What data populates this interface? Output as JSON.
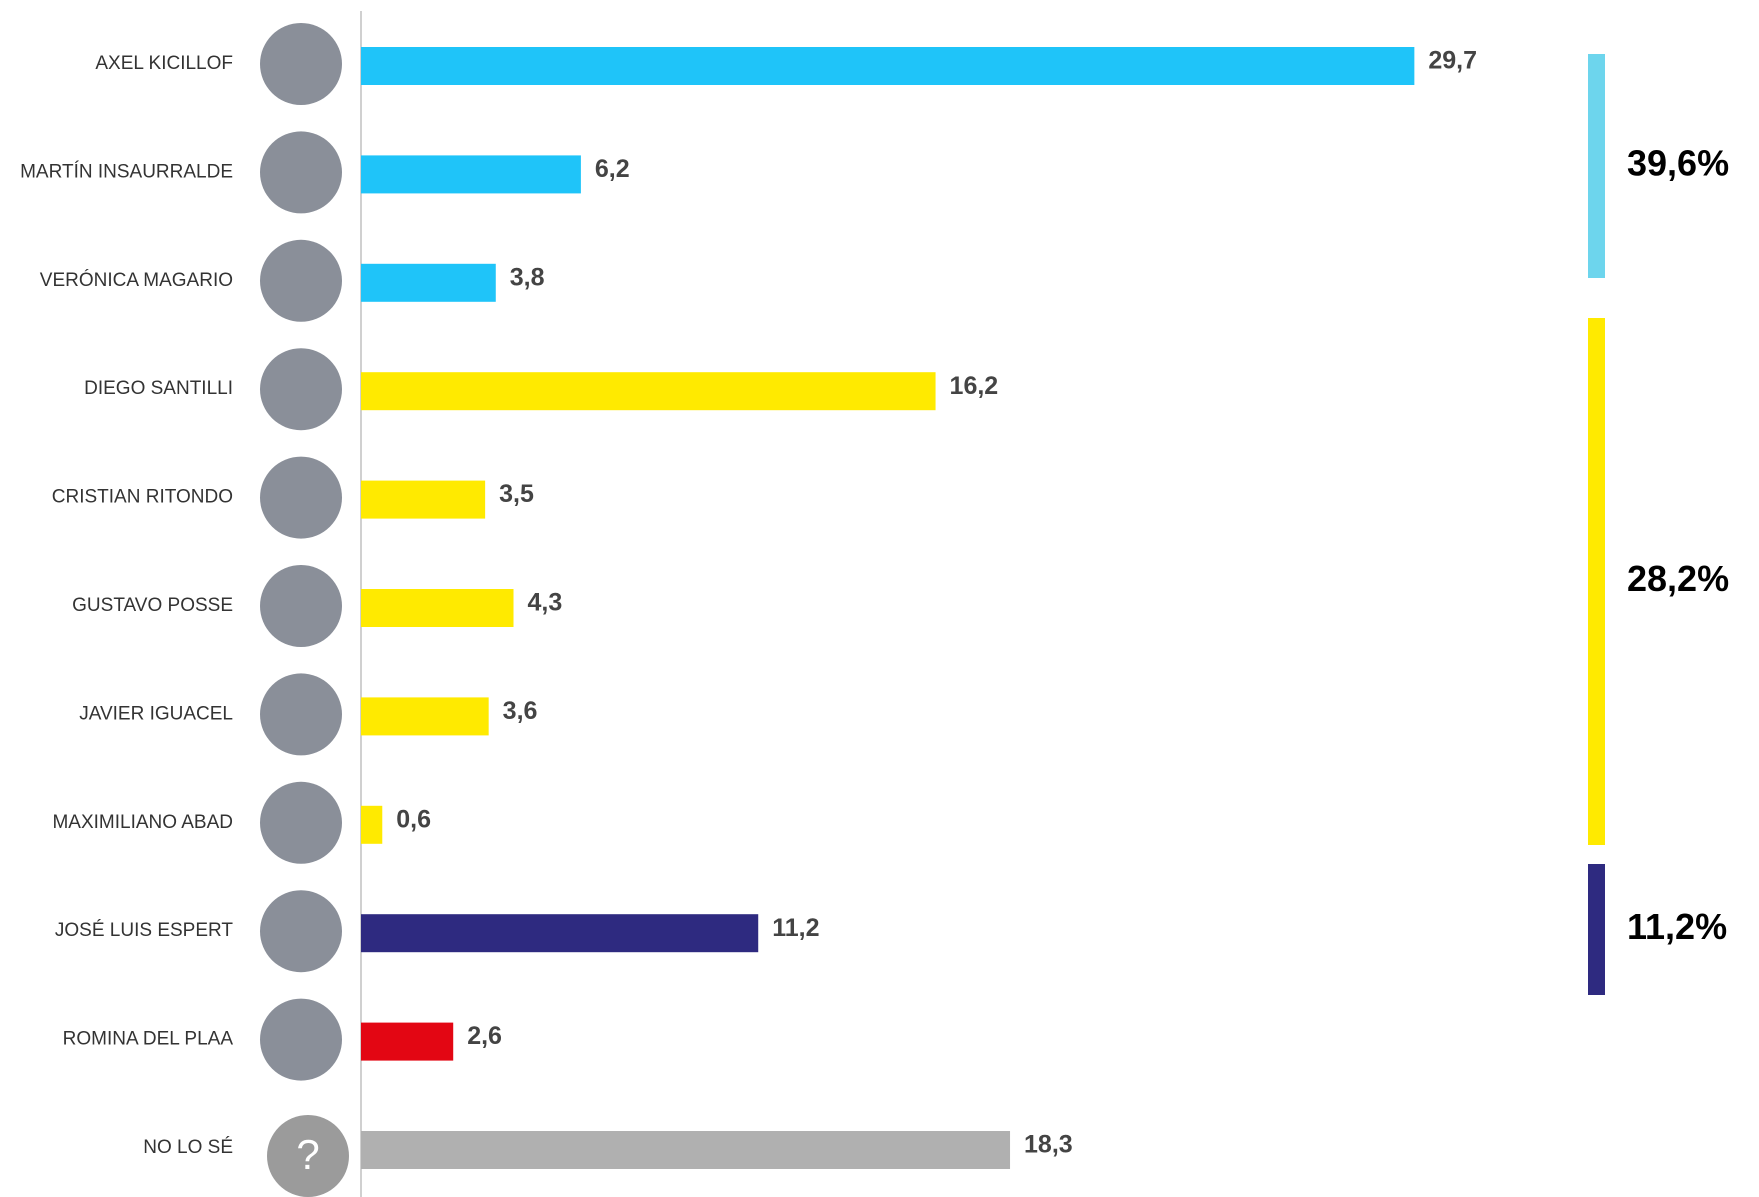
{
  "chart_data": {
    "type": "hbar",
    "categories": [
      "AXEL KICILLOF",
      "MARTÍN INSAURRALDE",
      "VERÓNICA MAGARIO",
      "DIEGO SANTILLI",
      "CRISTIAN RITONDO",
      "GUSTAVO POSSE",
      "JAVIER IGUACEL",
      "MAXIMILIANO ABAD",
      "JOSÉ LUIS ESPERT",
      "ROMINA DEL PLAA",
      "NO LO SÉ"
    ],
    "values": [
      29.7,
      6.2,
      3.8,
      16.2,
      3.5,
      4.3,
      3.6,
      0.6,
      11.2,
      2.6,
      18.3
    ],
    "value_labels": [
      "29,7",
      "6,2",
      "3,8",
      "16,2",
      "3,5",
      "4,3",
      "3,6",
      "0,6",
      "11,2",
      "2,6",
      "18,3"
    ],
    "colors": [
      "#1fc4f9",
      "#1fc4f9",
      "#1fc4f9",
      "#ffea00",
      "#ffea00",
      "#ffea00",
      "#ffea00",
      "#ffea00",
      "#2e2a80",
      "#e30613",
      "#b0b0b0"
    ],
    "xlim": [
      0,
      30
    ],
    "unknown_symbol": "?",
    "groups": [
      {
        "value": 39.6,
        "label": "39,6%",
        "color": "#6dd5ed"
      },
      {
        "value": 28.2,
        "label": "28,2%",
        "color": "#ffea00"
      },
      {
        "value": 11.2,
        "label": "11,2%",
        "color": "#2e2a80"
      }
    ]
  }
}
